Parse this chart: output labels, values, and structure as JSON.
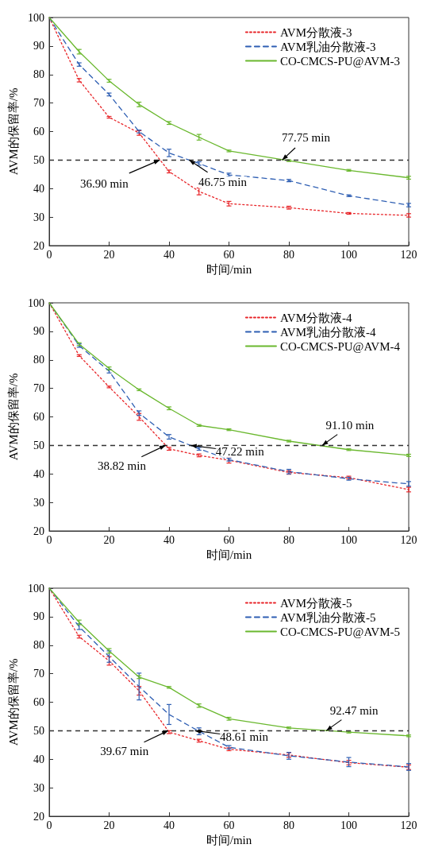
{
  "chart_data": [
    {
      "type": "line",
      "xlabel": "时间/min",
      "ylabel": "AVM的保留率/%",
      "x": [
        0,
        10,
        20,
        30,
        40,
        50,
        60,
        80,
        100,
        120
      ],
      "xlim": [
        0,
        120
      ],
      "xticks": [
        0,
        20,
        40,
        60,
        80,
        100,
        120
      ],
      "ylim": [
        20,
        100
      ],
      "yticks": [
        20,
        30,
        40,
        50,
        60,
        70,
        80,
        90,
        100
      ],
      "legend": "top right",
      "grid": false,
      "marker": "none",
      "series": [
        {
          "name": "AVM分散液-3",
          "color": "#e8262a",
          "line_style": "dotted",
          "values": [
            100,
            78,
            65,
            59.5,
            46,
            39,
            34.7,
            33.3,
            31.3,
            30.6
          ],
          "errors": [
            null,
            0.6,
            0.3,
            0.8,
            0.5,
            1.2,
            0.8,
            0.5,
            0.3,
            0.6
          ]
        },
        {
          "name": "AVM乳油分散液-3",
          "color": "#2f5fb3",
          "line_style": "dashed",
          "values": [
            100,
            83.5,
            73,
            60,
            52.5,
            48.8,
            44.8,
            42.8,
            37.5,
            34.2
          ],
          "errors": [
            null,
            0.6,
            0.5,
            0.5,
            1.3,
            0.6,
            0.6,
            0.4,
            0.3,
            0.6
          ]
        },
        {
          "name": "CO-CMCS-PU@AVM-3",
          "color": "#6ab82e",
          "line_style": "solid",
          "values": [
            100,
            88,
            77.8,
            69.5,
            63,
            58,
            53.2,
            49.8,
            46.4,
            43.8
          ],
          "errors": [
            null,
            0.8,
            0.5,
            0.8,
            0.5,
            1.0,
            0.3,
            0.3,
            0.3,
            0.5
          ]
        }
      ],
      "ref_lines": [
        {
          "axis": "y",
          "value": 50,
          "color": "#333333",
          "line_style": "dashed"
        }
      ],
      "annotations": [
        {
          "text": "36.90 min",
          "x": 36.9,
          "y": 50
        },
        {
          "text": "46.75 min",
          "x": 46.75,
          "y": 50
        },
        {
          "text": "77.75 min",
          "x": 77.75,
          "y": 50
        }
      ]
    },
    {
      "type": "line",
      "xlabel": "时间/min",
      "ylabel": "AVM的保留率/%",
      "x": [
        0,
        10,
        20,
        30,
        40,
        50,
        60,
        80,
        100,
        120
      ],
      "xlim": [
        0,
        120
      ],
      "xticks": [
        0,
        20,
        40,
        60,
        80,
        100,
        120
      ],
      "ylim": [
        20,
        100
      ],
      "yticks": [
        20,
        30,
        40,
        50,
        60,
        70,
        80,
        90,
        100
      ],
      "legend": "top right",
      "grid": false,
      "marker": "none",
      "series": [
        {
          "name": "AVM分散液-4",
          "color": "#e8262a",
          "line_style": "dotted",
          "values": [
            100,
            81.5,
            70.5,
            60,
            48.8,
            46.5,
            44.8,
            40.5,
            38.7,
            34.5
          ],
          "errors": [
            null,
            0.3,
            0.3,
            1.2,
            0.5,
            0.5,
            1.0,
            0.6,
            0.5,
            0.8
          ]
        },
        {
          "name": "AVM乳油分散液-4",
          "color": "#2f5fb3",
          "line_style": "dashed",
          "values": [
            100,
            85,
            76,
            61.3,
            53,
            48.8,
            45,
            40.8,
            38.3,
            36.5
          ],
          "errors": [
            null,
            0.6,
            0.6,
            0.8,
            0.8,
            0.5,
            0.5,
            0.8,
            0.5,
            0.8
          ]
        },
        {
          "name": "CO-CMCS-PU@AVM-4",
          "color": "#6ab82e",
          "line_style": "solid",
          "values": [
            100,
            85.5,
            77,
            69.5,
            63,
            57,
            55.5,
            51.5,
            48.5,
            46.5
          ],
          "errors": [
            null,
            0.5,
            0.5,
            0.3,
            0.5,
            0.3,
            0.3,
            0.3,
            0.3,
            0.4
          ]
        }
      ],
      "ref_lines": [
        {
          "axis": "y",
          "value": 50,
          "color": "#333333",
          "line_style": "dashed"
        }
      ],
      "annotations": [
        {
          "text": "38.82 min",
          "x": 38.82,
          "y": 50
        },
        {
          "text": "47.22 min",
          "x": 47.22,
          "y": 50
        },
        {
          "text": "91.10 min",
          "x": 91.1,
          "y": 50
        }
      ]
    },
    {
      "type": "line",
      "xlabel": "时间/min",
      "ylabel": "AVM的保留率/%",
      "x": [
        0,
        10,
        20,
        30,
        40,
        50,
        60,
        80,
        100,
        120
      ],
      "xlim": [
        0,
        120
      ],
      "xticks": [
        0,
        20,
        40,
        60,
        80,
        100,
        120
      ],
      "ylim": [
        20,
        100
      ],
      "yticks": [
        20,
        30,
        40,
        50,
        60,
        70,
        80,
        90,
        100
      ],
      "legend": "top right",
      "grid": false,
      "marker": "none",
      "series": [
        {
          "name": "AVM分散液-5",
          "color": "#e8262a",
          "line_style": "dotted",
          "values": [
            100,
            83,
            74.5,
            64,
            49.5,
            46.5,
            43.5,
            41.5,
            38.8,
            37.2
          ],
          "errors": [
            null,
            0.5,
            1.5,
            1.5,
            0.5,
            0.5,
            0.5,
            0.8,
            0.8,
            0.8
          ]
        },
        {
          "name": "AVM乳油分散液-5",
          "color": "#2f5fb3",
          "line_style": "dashed",
          "values": [
            100,
            86.5,
            76,
            65.5,
            55.7,
            49.8,
            44.2,
            41.2,
            39,
            37.3
          ],
          "errors": [
            null,
            1.0,
            2.0,
            4.7,
            3.5,
            1.2,
            0.6,
            1.2,
            1.6,
            1.2
          ]
        },
        {
          "name": "CO-CMCS-PU@AVM-5",
          "color": "#6ab82e",
          "line_style": "solid",
          "values": [
            100,
            88,
            78,
            68.8,
            65.2,
            58.8,
            54.2,
            51,
            49.5,
            48.2
          ],
          "errors": [
            null,
            0.8,
            0.8,
            0.5,
            0.3,
            0.6,
            0.5,
            0.3,
            0.3,
            0.3
          ]
        }
      ],
      "ref_lines": [
        {
          "axis": "y",
          "value": 50,
          "color": "#333333",
          "line_style": "dashed"
        }
      ],
      "annotations": [
        {
          "text": "39.67 min",
          "x": 39.67,
          "y": 50
        },
        {
          "text": "48.61 min",
          "x": 48.61,
          "y": 50
        },
        {
          "text": "92.47 min",
          "x": 92.47,
          "y": 50
        }
      ]
    }
  ]
}
